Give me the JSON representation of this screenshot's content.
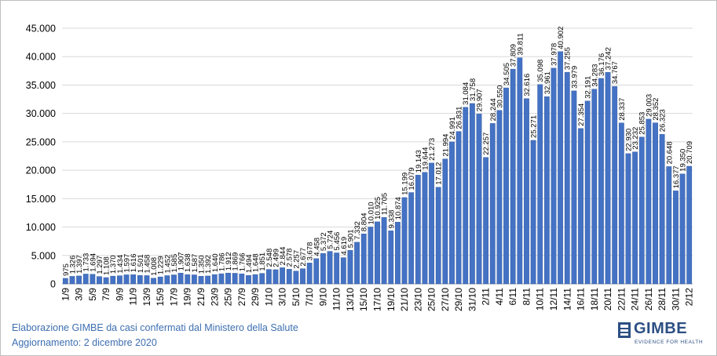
{
  "caption": {
    "line1": "Elaborazione GIMBE da casi confermati dal Ministero della Salute",
    "line2": "Aggiornamento: 2 dicembre 2020"
  },
  "logo": {
    "name": "GIMBE",
    "tagline": "EVIDENCE FOR HEALTH"
  },
  "colors": {
    "bar": "#4472c4",
    "bar_edge": "#2f5597",
    "grid": "#d9d9d9",
    "text": "#000000",
    "caption": "#3d6fb0"
  },
  "chart_data": {
    "type": "bar",
    "grid": true,
    "ylim": [
      0,
      45000
    ],
    "yticks": [
      0,
      5000,
      10000,
      15000,
      20000,
      25000,
      30000,
      35000,
      40000,
      45000
    ],
    "ytick_labels": [
      "0",
      "5.000",
      "10.000",
      "15.000",
      "20.000",
      "25.000",
      "30.000",
      "35.000",
      "40.000",
      "45.000"
    ],
    "categories": [
      "1/9",
      "2/9",
      "3/9",
      "4/9",
      "5/9",
      "6/9",
      "7/9",
      "8/9",
      "9/9",
      "10/9",
      "11/9",
      "12/9",
      "13/9",
      "14/9",
      "15/9",
      "16/9",
      "17/9",
      "18/9",
      "19/9",
      "20/9",
      "21/9",
      "22/9",
      "23/9",
      "24/9",
      "25/9",
      "26/9",
      "27/9",
      "28/9",
      "29/9",
      "30/9",
      "1/10",
      "2/10",
      "3/10",
      "4/10",
      "5/10",
      "6/10",
      "7/10",
      "8/10",
      "9/10",
      "10/10",
      "11/10",
      "12/10",
      "13/10",
      "14/10",
      "15/10",
      "16/10",
      "17/10",
      "18/10",
      "19/10",
      "20/10",
      "21/10",
      "22/10",
      "23/10",
      "24/10",
      "25/10",
      "26/10",
      "27/10",
      "28/10",
      "29/10",
      "30/10",
      "31/10",
      "1/11",
      "2/11",
      "3/11",
      "4/11",
      "5/11",
      "6/11",
      "7/11",
      "8/11",
      "9/11",
      "10/11",
      "11/11",
      "12/11",
      "13/11",
      "14/11",
      "15/11",
      "16/11",
      "17/11",
      "18/11",
      "19/11",
      "20/11",
      "21/11",
      "22/11",
      "23/11",
      "24/11",
      "25/11",
      "26/11",
      "27/11",
      "28/11",
      "29/11",
      "30/11",
      "1/12",
      "2/12"
    ],
    "values": [
      975,
      1326,
      1397,
      1733,
      1694,
      1297,
      1108,
      1370,
      1434,
      1597,
      1616,
      1501,
      1458,
      1008,
      1229,
      1452,
      1585,
      1907,
      1638,
      1587,
      1350,
      1392,
      1640,
      1786,
      1912,
      1869,
      1766,
      1494,
      1648,
      1851,
      2548,
      2499,
      2844,
      2578,
      2257,
      2677,
      3678,
      4458,
      5372,
      5724,
      5456,
      4619,
      5901,
      7332,
      8804,
      10010,
      10925,
      11705,
      9338,
      10874,
      15199,
      16079,
      19143,
      19644,
      21273,
      17012,
      21994,
      24991,
      26831,
      31084,
      31758,
      29907,
      22257,
      28244,
      30550,
      34505,
      37809,
      39811,
      32616,
      25271,
      35098,
      32961,
      37978,
      40902,
      37255,
      33979,
      27354,
      32191,
      34283,
      36176,
      37242,
      34767,
      28337,
      22930,
      23232,
      25853,
      29003,
      28352,
      26323,
      20648,
      16377,
      19350,
      20709
    ],
    "value_labels": [
      "975",
      "1.326",
      "1.397",
      "1.733",
      "1.694",
      "1.297",
      "1.108",
      "1.370",
      "1.434",
      "1.597",
      "1.616",
      "1.501",
      "1.458",
      "1.008",
      "1.229",
      "1.452",
      "1.585",
      "1.907",
      "1.638",
      "1.587",
      "1.350",
      "1.392",
      "1.640",
      "1.786",
      "1.912",
      "1.869",
      "1.766",
      "1.494",
      "1.648",
      "1.851",
      "2.548",
      "2.499",
      "2.844",
      "2.578",
      "2.257",
      "2.677",
      "3.678",
      "4.458",
      "5.372",
      "5.724",
      "5.456",
      "4.619",
      "5.901",
      "7.332",
      "8.804",
      "10.010",
      "10.925",
      "11.705",
      "9.338",
      "10.874",
      "15.199",
      "16.079",
      "19.143",
      "19.644",
      "21.273",
      "17.012",
      "21.994",
      "24.991",
      "26.831",
      "31.084",
      "31.758",
      "29.907",
      "22.257",
      "28.244",
      "30.550",
      "34.505",
      "37.809",
      "39.811",
      "32.616",
      "25.271",
      "35.098",
      "32.961",
      "37.978",
      "40.902",
      "37.255",
      "33.979",
      "27.354",
      "32.191",
      "34.283",
      "36.176",
      "37.242",
      "34.767",
      "28.337",
      "22.930",
      "23.232",
      "25.853",
      "29.003",
      "28.352",
      "26.323",
      "20.648",
      "16.377",
      "19.350",
      "20.709"
    ],
    "xtick_every": 2
  }
}
